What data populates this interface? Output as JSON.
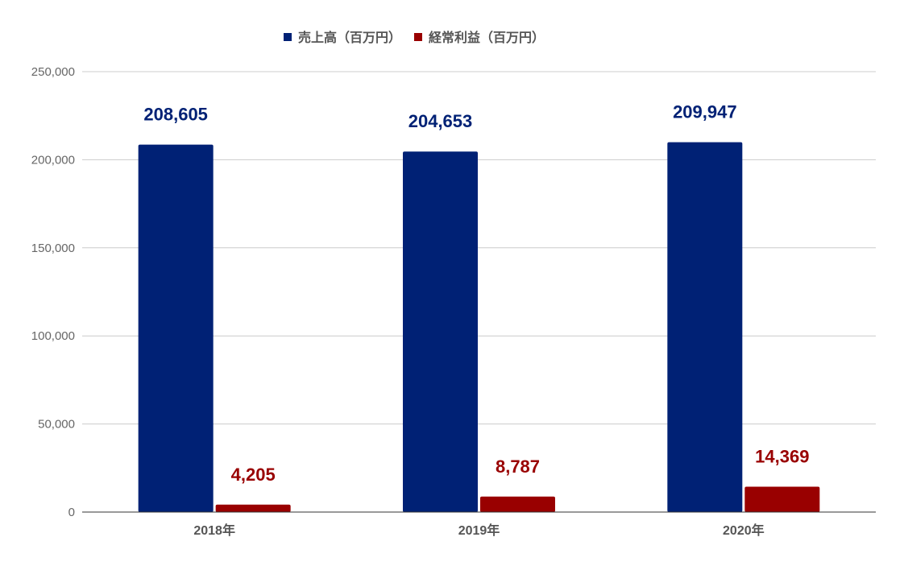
{
  "chart_data": {
    "type": "bar",
    "title": "",
    "xlabel": "",
    "ylabel": "",
    "categories": [
      "2018年",
      "2019年",
      "2020年"
    ],
    "series": [
      {
        "name": "売上高（百万円）",
        "color": "#002175",
        "values": [
          208605,
          204653,
          209947
        ],
        "labels": [
          "208,605",
          "204,653",
          "209,947"
        ]
      },
      {
        "name": "経常利益（百万円）",
        "color": "#990000",
        "values": [
          4205,
          8787,
          14369
        ],
        "labels": [
          "4,205",
          "8,787",
          "14,369"
        ]
      }
    ],
    "ylim": [
      0,
      250000
    ],
    "yticks": [
      0,
      50000,
      100000,
      150000,
      200000,
      250000
    ],
    "ytick_labels": [
      "0",
      "50,000",
      "100,000",
      "150,000",
      "200,000",
      "250,000"
    ],
    "grid": true,
    "legend_position": "top"
  }
}
